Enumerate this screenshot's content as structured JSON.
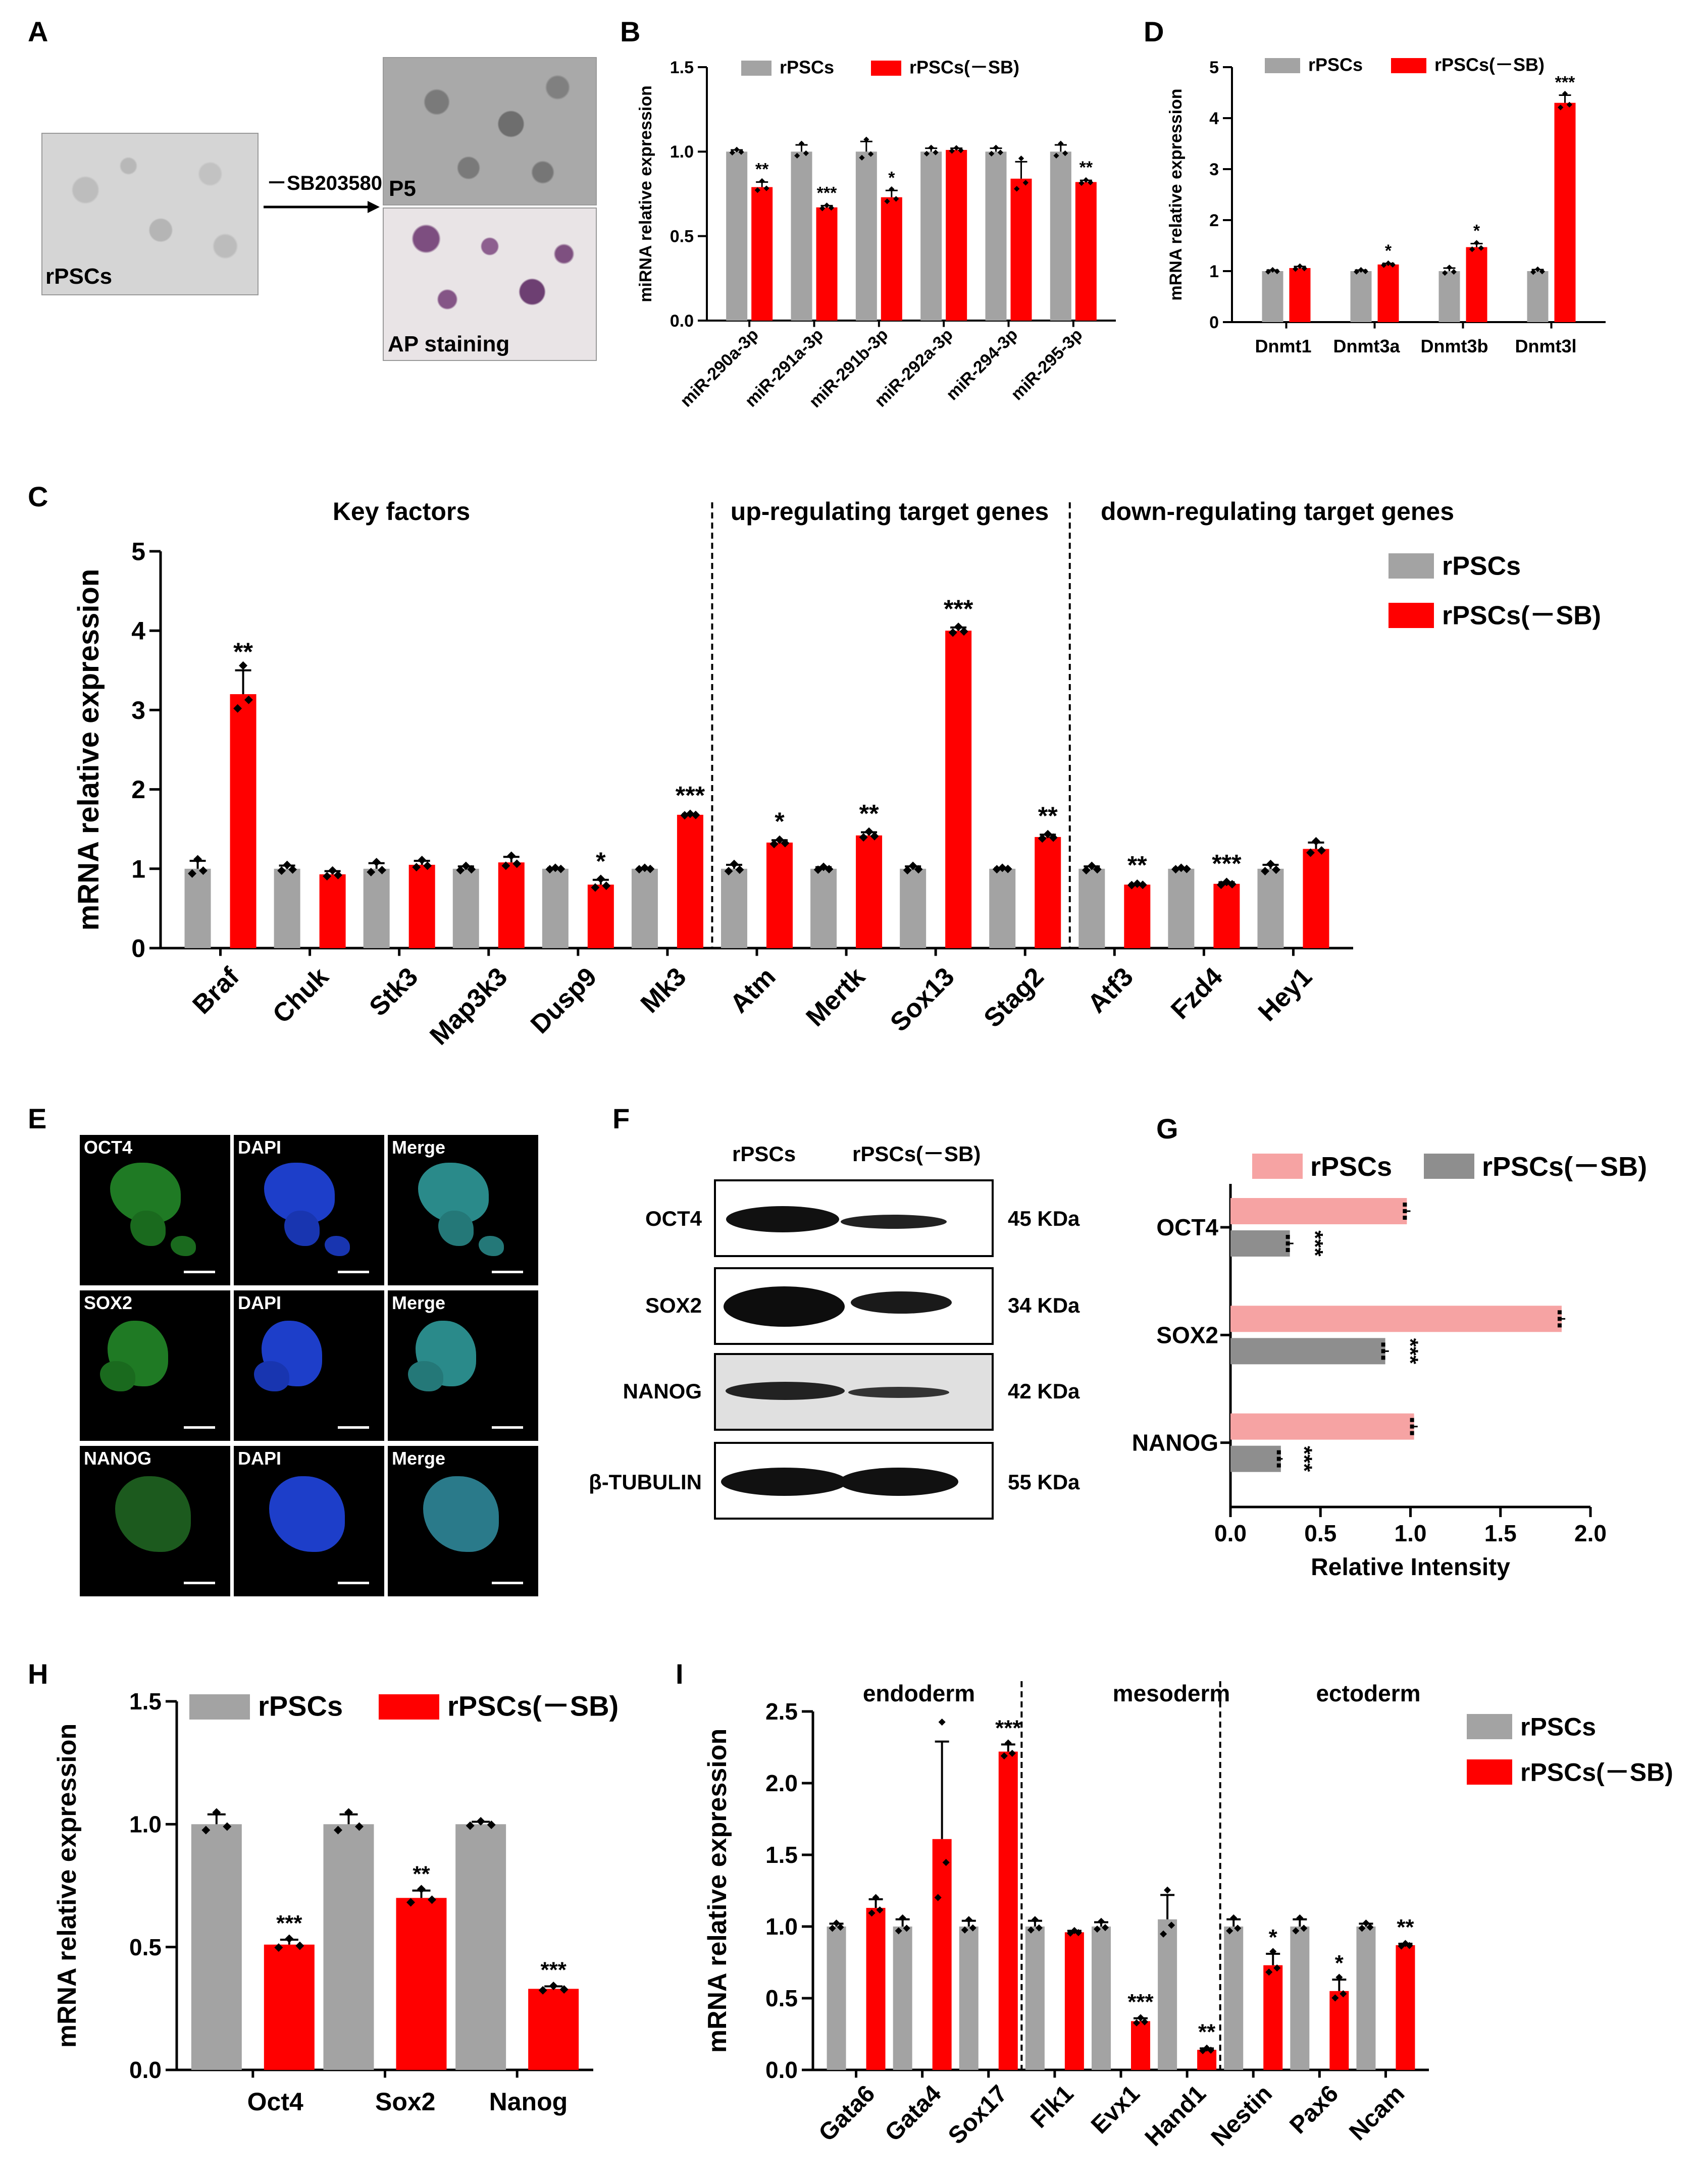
{
  "panel_letters": {
    "a": "A",
    "b": "B",
    "c": "C",
    "d": "D",
    "e": "E",
    "f": "F",
    "g": "G",
    "h": "H",
    "i": "I"
  },
  "colors": {
    "gray": "#a3a3a3",
    "red": "#ff0000",
    "pink": "#f6a3a3",
    "dark_gray": "#8e8e8e"
  },
  "panel_a": {
    "treatment_label": "－SB203580",
    "img_left_label": "rPSCs",
    "img_top_label": "P5",
    "img_bottom_label": "AP staining"
  },
  "panel_e": {
    "rows": [
      {
        "marker": "OCT4",
        "dapi": "DAPI",
        "merge": "Merge"
      },
      {
        "marker": "SOX2",
        "dapi": "DAPI",
        "merge": "Merge"
      },
      {
        "marker": "NANOG",
        "dapi": "DAPI",
        "merge": "Merge"
      }
    ]
  },
  "panel_f": {
    "col_headers": [
      "rPSCs",
      "rPSCs(－SB)"
    ],
    "bands": [
      {
        "label": "OCT4",
        "size": "45 KDa"
      },
      {
        "label": "SOX2",
        "size": "34 KDa"
      },
      {
        "label": "NANOG",
        "size": "42 KDa"
      },
      {
        "label": "β-TUBULIN",
        "size": "55 KDa"
      }
    ]
  },
  "chart_data": [
    {
      "id": "B",
      "type": "bar",
      "title": "",
      "xlabel": "",
      "ylabel": "miRNA  relative expression",
      "ylim": [
        0,
        1.5
      ],
      "yticks": [
        "0.0",
        "0.5",
        "1.0",
        "1.5"
      ],
      "categories": [
        "miR-290a-3p",
        "miR-291a-3p",
        "miR-291b-3p",
        "miR-292a-3p",
        "miR-294-3p",
        "miR-295-3p"
      ],
      "series": [
        {
          "name": "rPSCs",
          "values": [
            1.0,
            1.0,
            1.0,
            1.0,
            1.0,
            1.0
          ],
          "errors": [
            0.01,
            0.04,
            0.06,
            0.02,
            0.02,
            0.04
          ]
        },
        {
          "name": "rPSCs(－SB)",
          "values": [
            0.79,
            0.67,
            0.73,
            1.01,
            0.84,
            0.82
          ],
          "errors": [
            0.03,
            0.01,
            0.04,
            0.01,
            0.1,
            0.01
          ]
        }
      ],
      "significance": [
        "**",
        "***",
        "*",
        "",
        "",
        "**"
      ],
      "legend_position": "top"
    },
    {
      "id": "D",
      "type": "bar",
      "title": "",
      "xlabel": "",
      "ylabel": "mRNA  relative expression",
      "ylim": [
        0,
        5
      ],
      "yticks": [
        "0",
        "1",
        "2",
        "3",
        "4",
        "5"
      ],
      "categories": [
        "Dnmt1",
        "Dnmt3a",
        "Dnmt3b",
        "Dnmt3l"
      ],
      "series": [
        {
          "name": "rPSCs",
          "values": [
            1.0,
            1.0,
            1.0,
            1.0
          ],
          "errors": [
            0.02,
            0.02,
            0.06,
            0.03
          ]
        },
        {
          "name": "rPSCs(－SB)",
          "values": [
            1.06,
            1.13,
            1.47,
            4.3
          ],
          "errors": [
            0.03,
            0.02,
            0.07,
            0.15
          ]
        }
      ],
      "significance": [
        "",
        "*",
        "*",
        "***"
      ],
      "legend_position": "top"
    },
    {
      "id": "C",
      "type": "bar",
      "title": "",
      "xlabel": "",
      "ylabel": "mRNA  relative expression",
      "ylim": [
        0,
        5
      ],
      "yticks": [
        "0",
        "1",
        "2",
        "3",
        "4",
        "5"
      ],
      "categories": [
        "Braf",
        "Chuk",
        "Stk3",
        "Map3k3",
        "Dusp9",
        "Mk3",
        "Atm",
        "Mertk",
        "Sox13",
        "Stag2",
        "Atf3",
        "Fzd4",
        "Hey1"
      ],
      "series": [
        {
          "name": "rPSCs",
          "values": [
            1.0,
            1.0,
            1.0,
            1.0,
            1.0,
            1.0,
            1.0,
            1.0,
            1.0,
            1.0,
            1.0,
            1.0,
            1.0
          ],
          "errors": [
            0.1,
            0.04,
            0.07,
            0.03,
            0.01,
            0.01,
            0.05,
            0.02,
            0.03,
            0.01,
            0.03,
            0.01,
            0.05
          ]
        },
        {
          "name": "rPSCs(－SB)",
          "values": [
            3.2,
            0.93,
            1.05,
            1.08,
            0.8,
            1.68,
            1.33,
            1.42,
            4.0,
            1.4,
            0.8,
            0.81,
            1.25
          ],
          " errors": [],
          "errors": [
            0.3,
            0.04,
            0.05,
            0.07,
            0.06,
            0.01,
            0.03,
            0.04,
            0.04,
            0.03,
            0.01,
            0.02,
            0.08
          ]
        }
      ],
      "significance": [
        "**",
        "",
        "",
        "",
        "*",
        "***",
        "*",
        "**",
        "***",
        "**",
        "**",
        "***",
        ""
      ],
      "group_labels": [
        "Key factors",
        "up-regulating target genes",
        "down-regulating target genes"
      ],
      "legend_position": "right"
    },
    {
      "id": "G",
      "type": "bar",
      "orientation": "horizontal",
      "title": "",
      "xlabel": "Relative Intensity",
      "ylabel": "",
      "xlim": [
        0,
        2
      ],
      "xticks": [
        "0.0",
        "0.5",
        "1.0",
        "1.5",
        "2.0"
      ],
      "categories": [
        "OCT4",
        "SOX2",
        "NANOG"
      ],
      "series": [
        {
          "name": "rPSCs",
          "values": [
            0.98,
            1.84,
            1.02
          ],
          "errors": [
            0.02,
            0.02,
            0.02
          ]
        },
        {
          "name": "rPSCs(－SB)",
          "values": [
            0.33,
            0.86,
            0.28
          ],
          "errors": [
            0.02,
            0.02,
            0.01
          ]
        }
      ],
      "significance": [
        "***",
        "***",
        "***"
      ],
      "legend_position": "top"
    },
    {
      "id": "H",
      "type": "bar",
      "title": "",
      "xlabel": "",
      "ylabel": "mRNA  relative expression",
      "ylim": [
        0,
        1.5
      ],
      "yticks": [
        "0.0",
        "0.5",
        "1.0",
        "1.5"
      ],
      "categories": [
        "Oct4",
        "Sox2",
        "Nanog"
      ],
      "series": [
        {
          "name": "rPSCs",
          "values": [
            1.0,
            1.0,
            1.0
          ],
          "errors": [
            0.04,
            0.04,
            0.01
          ]
        },
        {
          "name": "rPSCs(－SB)",
          "values": [
            0.51,
            0.7,
            0.33
          ],
          "errors": [
            0.02,
            0.03,
            0.01
          ]
        }
      ],
      "significance": [
        "***",
        "**",
        "***"
      ],
      "legend_position": "top"
    },
    {
      "id": "I",
      "type": "bar",
      "title": "",
      "xlabel": "",
      "ylabel": "mRNA  relative expression",
      "ylim": [
        0,
        2.5
      ],
      "yticks": [
        "0.0",
        "0.5",
        "1.0",
        "1.5",
        "2.0",
        "2.5"
      ],
      "categories": [
        "Gata6",
        "Gata4",
        "Sox17",
        "Flk1",
        "Evx1",
        "Hand1",
        "Nestin",
        "Pax6",
        "Ncam"
      ],
      "series": [
        {
          "name": "rPSCs",
          "values": [
            1.0,
            1.0,
            1.0,
            1.0,
            1.0,
            1.05,
            1.0,
            1.0,
            1.0
          ],
          "errors": [
            0.02,
            0.05,
            0.04,
            0.04,
            0.03,
            0.17,
            0.05,
            0.05,
            0.02
          ]
        },
        {
          "name": "rPSCs(－SB)",
          "values": [
            1.13,
            1.61,
            2.22,
            0.96,
            0.34,
            0.14,
            0.73,
            0.55,
            0.87
          ],
          "errors": [
            0.06,
            0.68,
            0.05,
            0.01,
            0.02,
            0.01,
            0.08,
            0.08,
            0.01
          ]
        }
      ],
      "significance": [
        "",
        "",
        "***",
        "",
        "***",
        "**",
        "*",
        "*",
        "**"
      ],
      "group_labels": [
        "endoderm",
        "mesoderm",
        "ectoderm"
      ],
      "legend_position": "right"
    }
  ]
}
